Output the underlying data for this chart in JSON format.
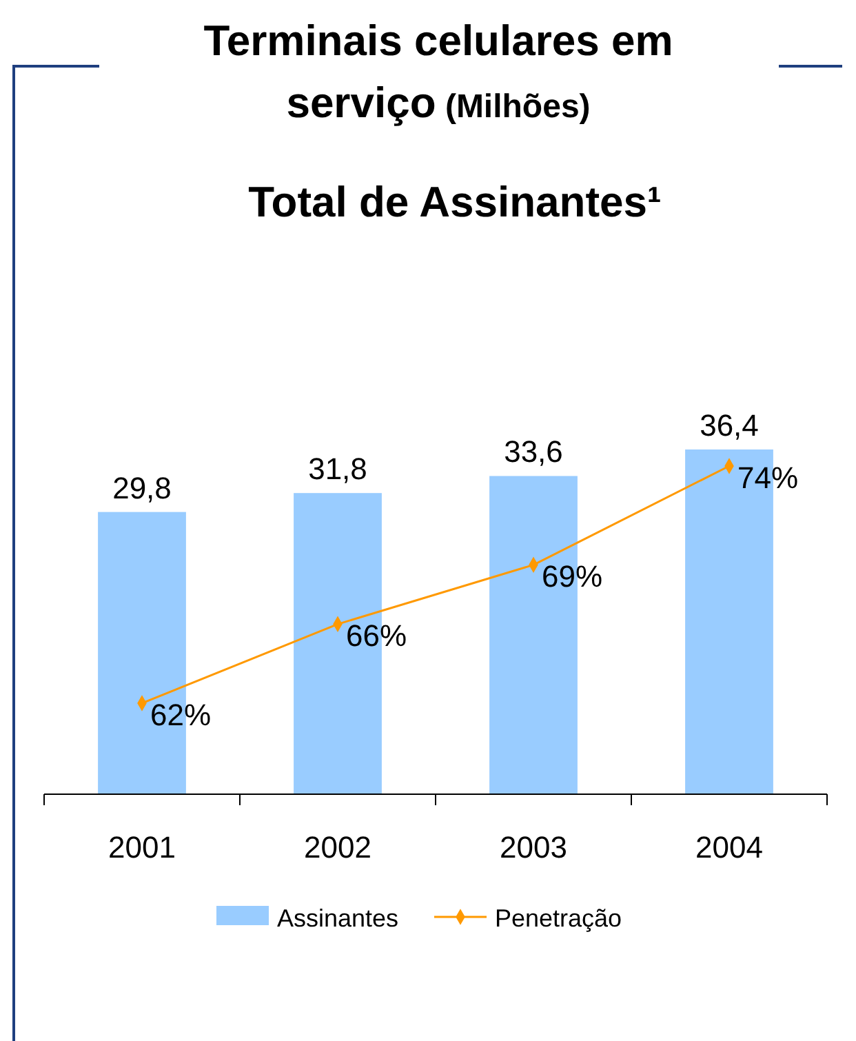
{
  "chart_data": {
    "type": "bar",
    "title": "Terminais celulares em serviço (Milhões)",
    "subtitle": "Total de Assinantes¹",
    "categories": [
      "2001",
      "2002",
      "2003",
      "2004"
    ],
    "series": [
      {
        "name": "Assinantes",
        "color": "#99ccff",
        "values": [
          29.8,
          31.8,
          33.6,
          36.4
        ],
        "value_labels": [
          "29,8",
          "31,8",
          "33,6",
          "36,4"
        ]
      },
      {
        "name": "Penetração",
        "type": "line",
        "axis": "y2",
        "color": "#ff9900",
        "values": [
          62,
          66,
          69,
          74
        ],
        "value_labels": [
          "62%",
          "66%",
          "69%",
          "74%"
        ]
      }
    ],
    "tick_labels": "x",
    "legend": "bottom",
    "marker": "diamond",
    "line_style": "solid",
    "grid": false
  }
}
